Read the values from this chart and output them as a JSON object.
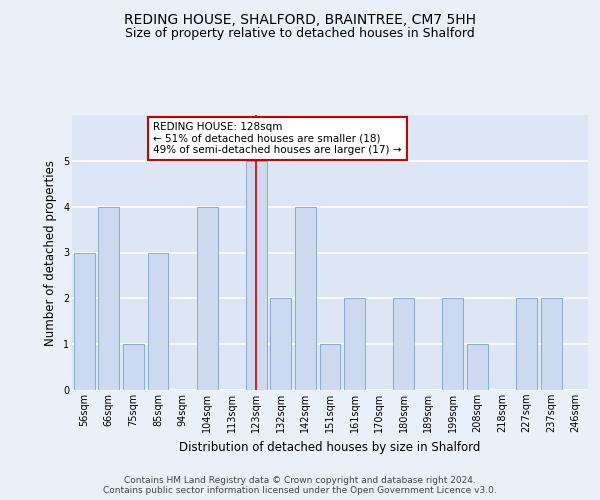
{
  "title": "REDING HOUSE, SHALFORD, BRAINTREE, CM7 5HH",
  "subtitle": "Size of property relative to detached houses in Shalford",
  "xlabel": "Distribution of detached houses by size in Shalford",
  "ylabel": "Number of detached properties",
  "footer_line1": "Contains HM Land Registry data © Crown copyright and database right 2024.",
  "footer_line2": "Contains public sector information licensed under the Open Government Licence v3.0.",
  "categories": [
    "56sqm",
    "66sqm",
    "75sqm",
    "85sqm",
    "94sqm",
    "104sqm",
    "113sqm",
    "123sqm",
    "132sqm",
    "142sqm",
    "151sqm",
    "161sqm",
    "170sqm",
    "180sqm",
    "189sqm",
    "199sqm",
    "208sqm",
    "218sqm",
    "227sqm",
    "237sqm",
    "246sqm"
  ],
  "values": [
    3,
    4,
    1,
    3,
    0,
    4,
    0,
    5,
    2,
    4,
    1,
    2,
    0,
    2,
    0,
    2,
    1,
    0,
    2,
    2,
    0
  ],
  "bar_color": "#ccd9ee",
  "bar_edge_color": "#8aaad4",
  "highlight_index": 7,
  "highlight_line_color": "#cc0000",
  "highlight_label": "REDING HOUSE: 128sqm",
  "highlight_line1": "← 51% of detached houses are smaller (18)",
  "highlight_line2": "49% of semi-detached houses are larger (17) →",
  "annotation_box_color": "#ffffff",
  "annotation_box_edge": "#cc0000",
  "ylim": [
    0,
    6
  ],
  "yticks": [
    0,
    1,
    2,
    3,
    4,
    5,
    6
  ],
  "bg_color": "#dce6f5",
  "fig_bg_color": "#eaf0f8",
  "grid_color": "#ffffff",
  "title_fontsize": 10,
  "subtitle_fontsize": 9,
  "ylabel_fontsize": 8.5,
  "xlabel_fontsize": 8.5,
  "tick_fontsize": 7,
  "footer_fontsize": 6.5,
  "annot_fontsize": 7.5
}
